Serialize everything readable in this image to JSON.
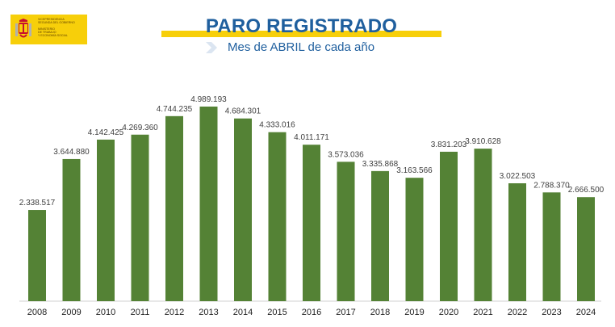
{
  "logo": {
    "lines": [
      "VICEPRESIDENCIA",
      "SEGUNDA DEL GOBIERNO",
      "MINISTERIO",
      "DE TRABAJO",
      "Y ECONOMÍA SOCIAL"
    ]
  },
  "header": {
    "title": "PARO REGISTRADO",
    "subtitle": "Mes de ABRIL de cada año"
  },
  "colors": {
    "bar": "#548235",
    "title": "#1f5f9e",
    "accent": "#f7cf0a"
  },
  "chart_data": {
    "type": "bar",
    "categories": [
      "2008",
      "2009",
      "2010",
      "2011",
      "2012",
      "2013",
      "2014",
      "2015",
      "2016",
      "2017",
      "2018",
      "2019",
      "2020",
      "2021",
      "2022",
      "2023",
      "2024"
    ],
    "values": [
      2338517,
      3644880,
      4142425,
      4269360,
      4744235,
      4989193,
      4684301,
      4333016,
      4011171,
      3573036,
      3335868,
      3163566,
      3831203,
      3910628,
      3022503,
      2788370,
      2666500
    ],
    "labels": [
      "2.338.517",
      "3.644.880",
      "4.142.425",
      "4.269.360",
      "4.744.235",
      "4.989.193",
      "4.684.301",
      "4.333.016",
      "4.011.171",
      "3.573.036",
      "3.335.868",
      "3.163.566",
      "3.831.203",
      "3.910.628",
      "3.022.503",
      "2.788.370",
      "2.666.500"
    ],
    "ylim": [
      0,
      5000000
    ],
    "grid": false,
    "legend": "none"
  }
}
